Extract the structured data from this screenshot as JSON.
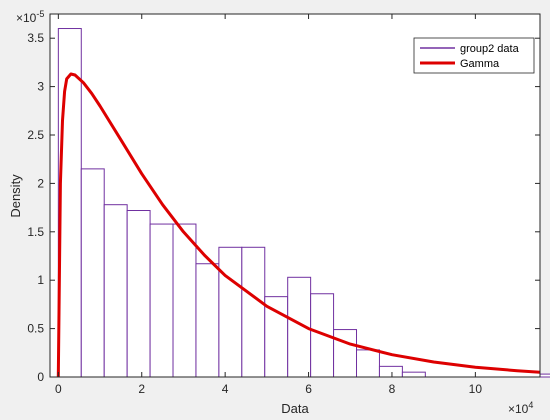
{
  "chart_data": {
    "type": "bar",
    "xlabel": "Data",
    "ylabel": "Density",
    "x_multiplier": "×10",
    "x_multiplier_exp": "4",
    "y_multiplier": "×10",
    "y_multiplier_exp": "-5",
    "xlim": [
      -0.2,
      11.55
    ],
    "ylim": [
      0,
      3.75
    ],
    "xticks": [
      0,
      2,
      4,
      6,
      8,
      10
    ],
    "xtick_labels": [
      "0",
      "2",
      "4",
      "6",
      "8",
      "10"
    ],
    "yticks": [
      0,
      0.5,
      1,
      1.5,
      2,
      2.5,
      3,
      3.5
    ],
    "ytick_labels": [
      "0",
      "0.5",
      "1",
      "1.5",
      "2",
      "2.5",
      "3",
      "3.5"
    ],
    "grid": false,
    "legend_position": "top-right",
    "series": [
      {
        "name": "group2 data",
        "kind": "histogram",
        "bin_width": 0.55,
        "bin_start": 0,
        "values": [
          3.6,
          2.15,
          1.78,
          1.72,
          1.58,
          1.58,
          1.17,
          1.34,
          1.34,
          0.83,
          1.03,
          0.86,
          0.49,
          0.28,
          0.11,
          0.05,
          0,
          0,
          0,
          0,
          0,
          0.03,
          0,
          0,
          0,
          0,
          0,
          0,
          0,
          0,
          0,
          0,
          0,
          0,
          0,
          0,
          0,
          0,
          0,
          0,
          0,
          0,
          0.03
        ],
        "color": "#7030a0"
      },
      {
        "name": "Gamma",
        "kind": "curve",
        "x": [
          0,
          0.05,
          0.1,
          0.15,
          0.2,
          0.3,
          0.4,
          0.6,
          0.8,
          1.0,
          1.5,
          2.0,
          2.5,
          3.0,
          3.5,
          4.0,
          5.0,
          6.0,
          7.0,
          8.0,
          9.0,
          10.0,
          11.0,
          11.55
        ],
        "y": [
          0,
          2.0,
          2.65,
          2.95,
          3.08,
          3.13,
          3.12,
          3.04,
          2.93,
          2.8,
          2.45,
          2.1,
          1.78,
          1.5,
          1.26,
          1.05,
          0.73,
          0.5,
          0.34,
          0.23,
          0.155,
          0.1,
          0.065,
          0.05
        ],
        "color": "#dd0000"
      }
    ]
  }
}
